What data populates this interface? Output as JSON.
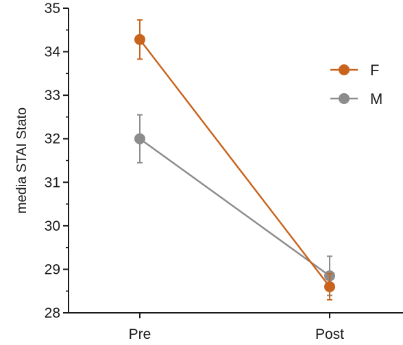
{
  "chart_data": {
    "type": "line",
    "title": "",
    "xlabel": "",
    "ylabel": "media STAI Stato",
    "categories": [
      "Pre",
      "Post"
    ],
    "ylim": [
      28,
      35
    ],
    "yticks": [
      28,
      29,
      30,
      31,
      32,
      33,
      34,
      35
    ],
    "minor_tick_step": 0.5,
    "grid": false,
    "legend_position": "right",
    "series": [
      {
        "name": "F",
        "color": "#c8641e",
        "values": [
          34.28,
          28.6
        ],
        "error": [
          0.45,
          0.3
        ]
      },
      {
        "name": "M",
        "color": "#8c8c8c",
        "values": [
          32.0,
          28.85
        ],
        "error": [
          0.55,
          0.45
        ]
      }
    ]
  }
}
